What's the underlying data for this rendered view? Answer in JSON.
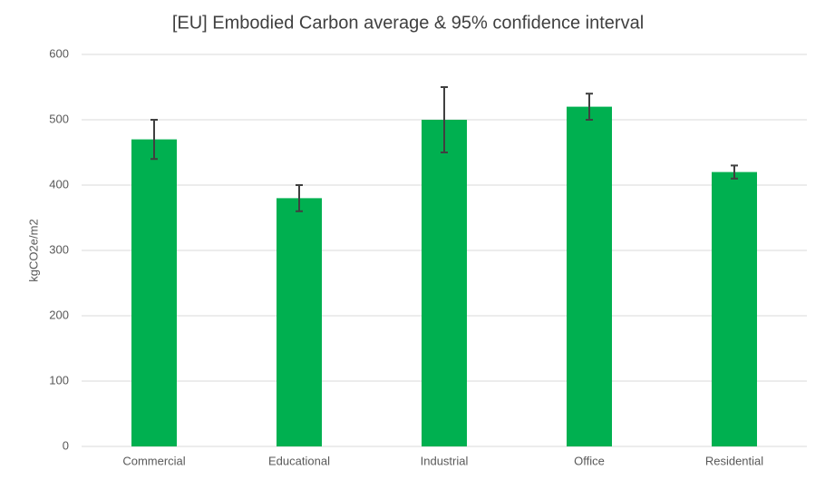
{
  "chart_data": {
    "type": "bar",
    "title": "[EU] Embodied Carbon average & 95% confidence interval",
    "y_label": "kgCO2e/m2",
    "categories": [
      "Commercial",
      "Educational",
      "Industrial",
      "Office",
      "Residential"
    ],
    "values": [
      470,
      380,
      500,
      520,
      420
    ],
    "errors": [
      30,
      20,
      50,
      20,
      10
    ],
    "color": "#00b050",
    "error_color": "#404040",
    "ylim": [
      0,
      600
    ],
    "yticks": [
      0,
      100,
      200,
      300,
      400,
      500,
      600
    ],
    "grid": true
  }
}
